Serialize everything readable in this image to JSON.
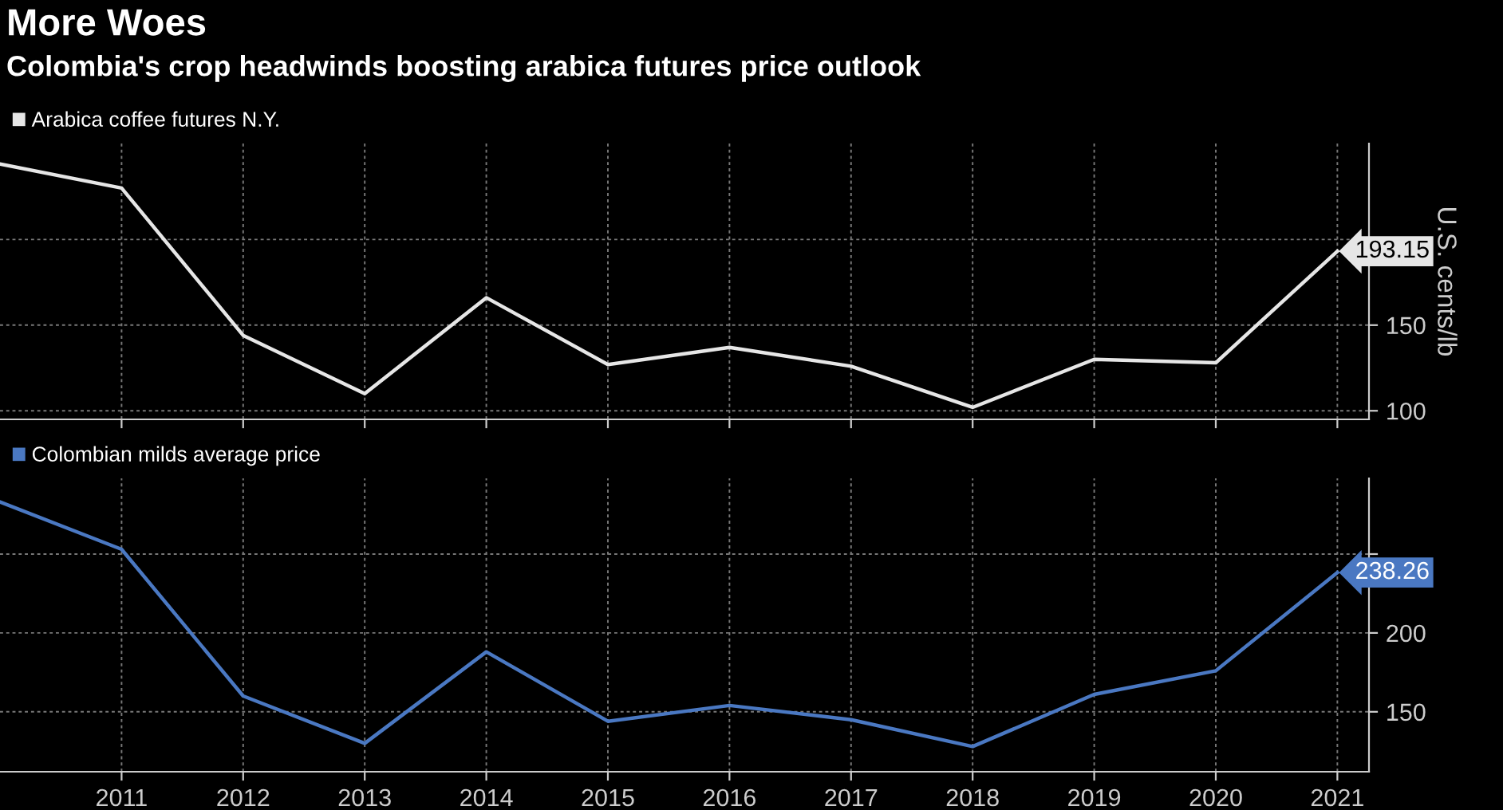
{
  "chart_data": [
    {
      "type": "line",
      "title": "More Woes",
      "subtitle": "Colombia's crop headwinds boosting arabica futures price outlook",
      "ylabel": "U.S. cents/lb",
      "x": [
        2010,
        2011,
        2012,
        2013,
        2014,
        2015,
        2016,
        2017,
        2018,
        2019,
        2020,
        2021
      ],
      "series": [
        {
          "name": "Arabica coffee futures N.Y.",
          "color": "#e6e6e6",
          "values": [
            244,
            230,
            144,
            110,
            166,
            127,
            137,
            126,
            102,
            130,
            128,
            193.15
          ]
        }
      ],
      "annotations": [
        {
          "text": "193.15",
          "x": 2021,
          "y": 193.15
        }
      ],
      "xlim": [
        2010,
        2021.26
      ],
      "ylim": [
        95,
        256
      ],
      "xticks": [
        2011,
        2012,
        2013,
        2014,
        2015,
        2016,
        2017,
        2018,
        2019,
        2020,
        2021
      ],
      "yticks": [
        100,
        150,
        {
          "value": 200,
          "label": null
        }
      ],
      "grid": true,
      "legend": "top left",
      "tick_labels": "y"
    },
    {
      "type": "line",
      "x": [
        2010,
        2011,
        2012,
        2013,
        2014,
        2015,
        2016,
        2017,
        2018,
        2019,
        2020,
        2021
      ],
      "series": [
        {
          "name": "Colombian milds average price",
          "color": "#4a78c2",
          "values": [
            283,
            253,
            160,
            130,
            188,
            144,
            154,
            145,
            128,
            161,
            176,
            238.26
          ]
        }
      ],
      "annotations": [
        {
          "text": "238.26",
          "x": 2021,
          "y": 238.26
        }
      ],
      "xlim": [
        2010,
        2021.26
      ],
      "ylim": [
        112,
        298
      ],
      "xticks": [
        2011,
        2012,
        2013,
        2014,
        2015,
        2016,
        2017,
        2018,
        2019,
        2020,
        2021
      ],
      "yticks": [
        150,
        200,
        {
          "value": 250,
          "label": null
        }
      ],
      "grid": true,
      "legend": "top left"
    }
  ]
}
